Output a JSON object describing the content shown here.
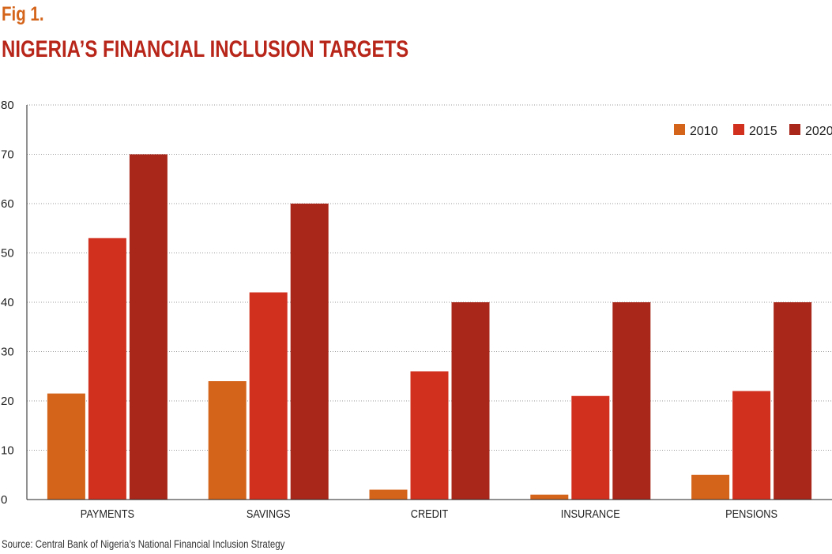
{
  "figure": {
    "label": "Fig 1.",
    "title": "NIGERIA’S FINANCIAL INCLUSION TARGETS",
    "source": "Source: Central Bank of Nigeria’s National Financial Inclusion Strategy"
  },
  "colors": {
    "label": "#d4641a",
    "title": "#b8261a",
    "s2010": "#d4641a",
    "s2015": "#d1301f",
    "s2020": "#a8271a"
  },
  "chart_data": {
    "type": "bar",
    "categories": [
      "PAYMENTS",
      "SAVINGS",
      "CREDIT",
      "INSURANCE",
      "PENSIONS"
    ],
    "series": [
      {
        "name": "2010",
        "values": [
          21.5,
          24,
          2,
          1,
          5
        ]
      },
      {
        "name": "2015",
        "values": [
          53,
          42,
          26,
          21,
          22
        ]
      },
      {
        "name": "2020",
        "values": [
          70,
          60,
          40,
          40,
          40
        ]
      }
    ],
    "ylim": [
      0,
      80
    ],
    "yticks": [
      0,
      10,
      20,
      30,
      40,
      50,
      60,
      70,
      80
    ],
    "grid": true,
    "legend": "top-right"
  }
}
